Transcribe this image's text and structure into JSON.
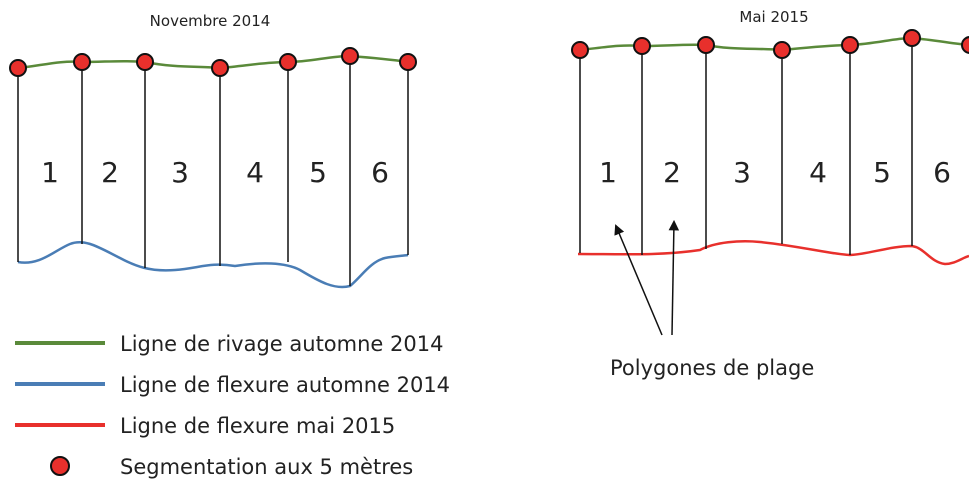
{
  "panels": [
    {
      "title": "Novembre 2014",
      "segments": [
        "1",
        "2",
        "3",
        "4",
        "5",
        "6"
      ]
    },
    {
      "title": "Mai 2015",
      "segments": [
        "1",
        "2",
        "3",
        "4",
        "5",
        "6"
      ]
    }
  ],
  "annotation": "Polygones de plage",
  "legend": [
    {
      "label": "Ligne de rivage automne 2014"
    },
    {
      "label": "Ligne de flexure automne 2014"
    },
    {
      "label": "Ligne de flexure mai 2015"
    },
    {
      "label": "Segmentation aux 5 mètres"
    }
  ]
}
